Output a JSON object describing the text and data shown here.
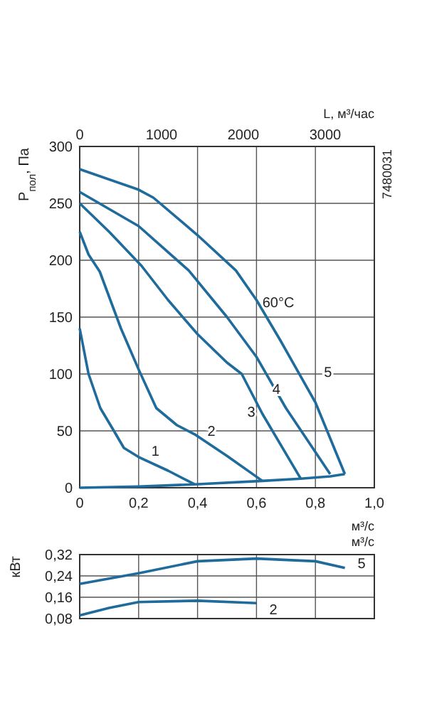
{
  "chart_data": [
    {
      "type": "line",
      "ylabel": "P$_{пол}$, Па",
      "xlabel": "м³/с",
      "x2label": "L, м³/час",
      "xlim": [
        0,
        1
      ],
      "xticks": [
        0,
        {
          "value": 0.2,
          "label": "0,2"
        },
        {
          "value": 0.4,
          "label": "0,4"
        },
        {
          "value": 0.6,
          "label": "0,6"
        },
        {
          "value": 0.8,
          "label": "0,8"
        },
        {
          "value": 1,
          "label": "1,0"
        }
      ],
      "ylim": [
        0,
        300
      ],
      "yticks": [
        0,
        50,
        100,
        150,
        200,
        250,
        300
      ],
      "x2lim": [
        0,
        3600
      ],
      "x2ticks": [
        0,
        1000,
        2000,
        3000
      ],
      "grid": true,
      "legend": false,
      "line_style": "solid",
      "marker": "none",
      "series": [
        {
          "name": "1",
          "color": "#1e6b9c",
          "x": [
            0,
            0.03,
            0.07,
            0.116,
            0.15,
            0.2,
            0.3,
            0.39
          ],
          "values": [
            140,
            100,
            70,
            50,
            35,
            27,
            15,
            3
          ]
        },
        {
          "name": "2",
          "color": "#1e6b9c",
          "x": [
            0,
            0.03,
            0.068,
            0.14,
            0.2,
            0.26,
            0.33,
            0.39,
            0.5,
            0.62
          ],
          "values": [
            225,
            205,
            190,
            140,
            104,
            70,
            55,
            47,
            28,
            6
          ]
        },
        {
          "name": "3",
          "color": "#1e6b9c",
          "x": [
            0,
            0.1,
            0.21,
            0.3,
            0.4,
            0.5,
            0.55,
            0.62,
            0.75
          ],
          "values": [
            250,
            225,
            195,
            165,
            135,
            110,
            100,
            65,
            8
          ]
        },
        {
          "name": "4",
          "color": "#1e6b9c",
          "x": [
            0,
            0.2,
            0.37,
            0.5,
            0.6,
            0.7,
            0.85
          ],
          "values": [
            260,
            230,
            191,
            150,
            115,
            70,
            12
          ]
        },
        {
          "name": "5",
          "color": "#1e6b9c",
          "x": [
            0,
            0.2,
            0.25,
            0.4,
            0.53,
            0.6,
            0.68,
            0.8,
            0.9
          ],
          "values": [
            280,
            262,
            255,
            222,
            191,
            165,
            130,
            75,
            12
          ]
        },
        {
          "color": "#1e6b9c",
          "x": [
            0,
            0.2,
            0.39,
            0.62,
            0.75,
            0.85,
            0.9
          ],
          "values": [
            0,
            1,
            3,
            6,
            8,
            10,
            12
          ]
        }
      ],
      "annotations": [
        "60°C",
        "7480031"
      ]
    },
    {
      "type": "line",
      "ylabel": "кВт",
      "xlabel": "м³/с",
      "xlim": [
        0,
        1
      ],
      "xticks": [
        {
          "value": 0.2,
          "label": null
        },
        {
          "value": 0.4,
          "label": null
        },
        {
          "value": 0.6,
          "label": null
        },
        {
          "value": 0.8,
          "label": null
        }
      ],
      "ylim": [
        0.08,
        0.32
      ],
      "yticks": [
        {
          "value": 0.08,
          "label": "0,08"
        },
        {
          "value": 0.16,
          "label": "0,16"
        },
        {
          "value": 0.24,
          "label": "0,24"
        },
        {
          "value": 0.32,
          "label": "0,32"
        }
      ],
      "tick_labels": "y",
      "grid": true,
      "legend": false,
      "line_style": "solid",
      "marker": "none",
      "series": [
        {
          "name": "5",
          "color": "#1e6b9c",
          "x": [
            0,
            0.2,
            0.4,
            0.6,
            0.8,
            0.9
          ],
          "values": [
            0.21,
            0.25,
            0.295,
            0.305,
            0.295,
            0.27
          ]
        },
        {
          "name": "2",
          "color": "#1e6b9c",
          "x": [
            0,
            0.1,
            0.2,
            0.4,
            0.6
          ],
          "values": [
            0.092,
            0.12,
            0.142,
            0.147,
            0.138
          ]
        }
      ]
    }
  ]
}
